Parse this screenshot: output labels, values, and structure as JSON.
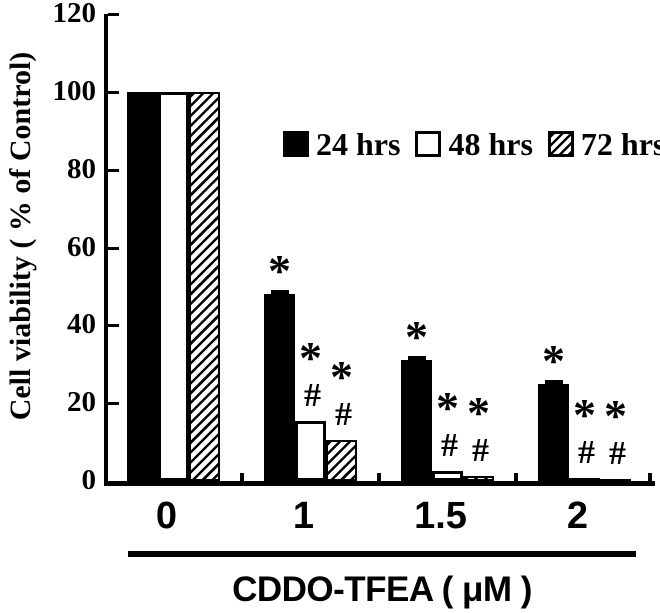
{
  "figure": {
    "background": "#ffffff",
    "foreground": "#000000"
  },
  "chart_data": {
    "type": "bar",
    "title": "",
    "xlabel": "CDDO-TFEA ( μM )",
    "ylabel": "Cell viability ( % of Control)",
    "categories": [
      "0",
      "1",
      "1.5",
      "2"
    ],
    "series": [
      {
        "name": "24 hrs",
        "fill": "solid-black",
        "values": [
          100,
          48,
          31,
          25
        ],
        "errors": [
          0,
          1,
          1,
          0.8
        ],
        "markers": [
          [],
          [
            "*"
          ],
          [
            "*"
          ],
          [
            "*"
          ]
        ]
      },
      {
        "name": "48 hrs",
        "fill": "white-outline",
        "values": [
          100,
          15.5,
          2.5,
          0.8
        ],
        "errors": [
          0,
          0,
          0,
          0
        ],
        "markers": [
          [],
          [
            "*",
            "#"
          ],
          [
            "*",
            "#"
          ],
          [
            "*",
            "#"
          ]
        ]
      },
      {
        "name": "72 hrs",
        "fill": "diagonal-hatch",
        "values": [
          100,
          10.5,
          1.2,
          0.6
        ],
        "errors": [
          0,
          0,
          0,
          0
        ],
        "markers": [
          [],
          [
            "*",
            "#"
          ],
          [
            "*",
            "#"
          ],
          [
            "*",
            "#"
          ]
        ]
      }
    ],
    "ylim": [
      0,
      120
    ],
    "yticks": [
      "0",
      "20",
      "40",
      "60",
      "80",
      "100",
      "120"
    ],
    "grid": false,
    "legend_position": "inside-upper-right"
  },
  "legend": {
    "items": [
      {
        "label": "24 hrs",
        "swatch": "solid-black"
      },
      {
        "label": "48 hrs",
        "swatch": "white-outline"
      },
      {
        "label": "72 hrs",
        "swatch": "diagonal-hatch"
      }
    ]
  }
}
